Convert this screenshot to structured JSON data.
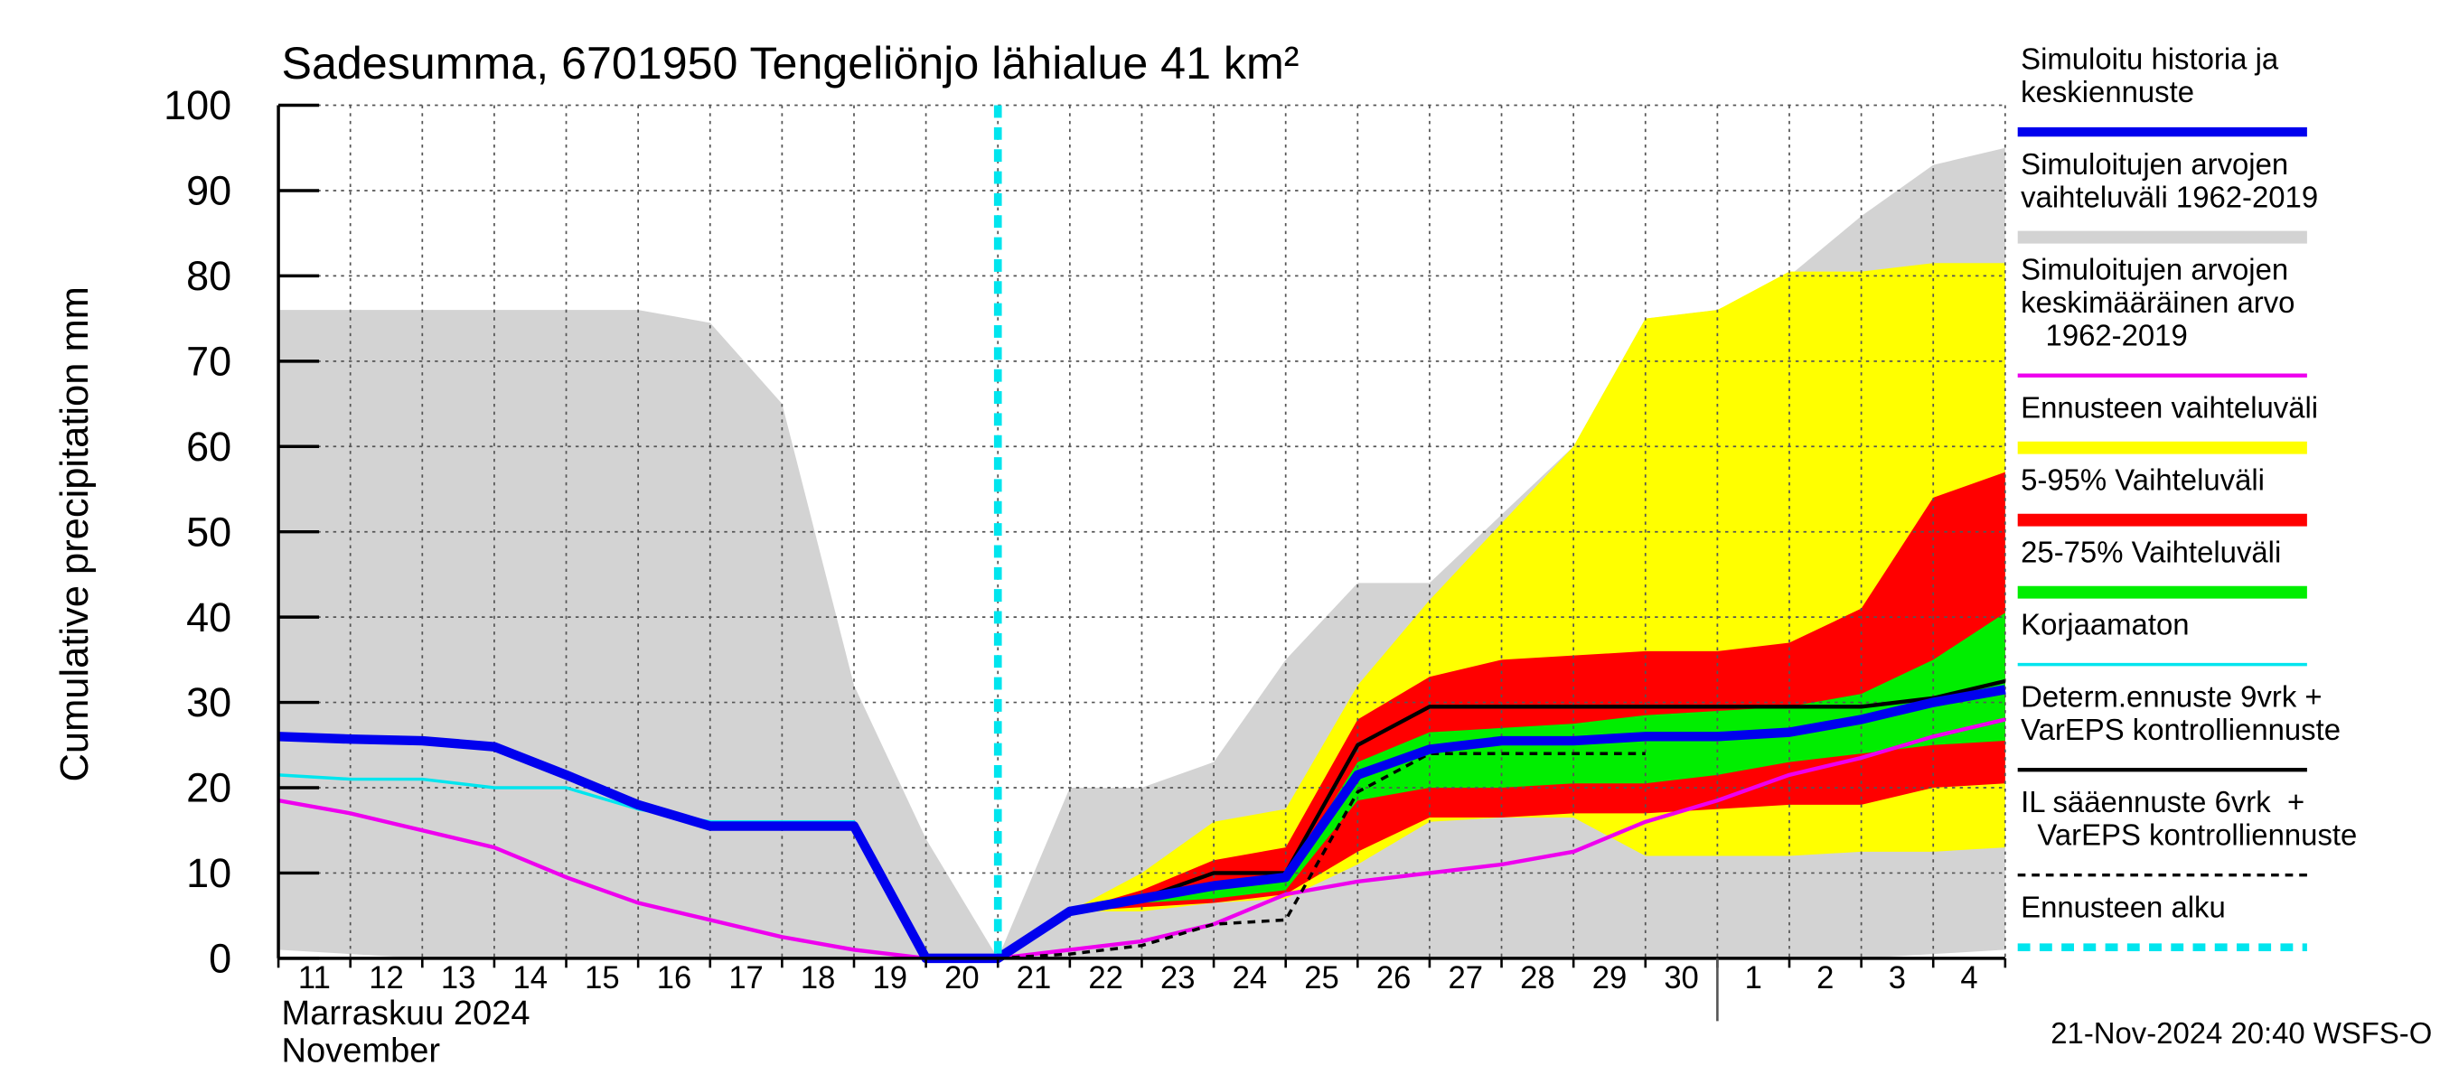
{
  "chart_data": {
    "type": "band-line",
    "title": "Sadesumma, 6701950 Tengeliönjo lähialue 41 km²",
    "y_label": "Cumulative precipitation   mm",
    "month_label": "Marraskuu 2024",
    "month_label_en": "November",
    "footer": "21-Nov-2024 20:40 WSFS-O",
    "categories": [
      "11",
      "12",
      "13",
      "14",
      "15",
      "16",
      "17",
      "18",
      "19",
      "20",
      "21",
      "22",
      "23",
      "24",
      "25",
      "26",
      "27",
      "28",
      "29",
      "30",
      "1",
      "2",
      "3",
      "4",
      null
    ],
    "month_break_index": 20,
    "forecast_start_index": 10,
    "ylim": [
      0,
      100
    ],
    "yticks": [
      0,
      10,
      20,
      30,
      40,
      50,
      60,
      70,
      80,
      90,
      100
    ],
    "grid": true,
    "series": [
      {
        "name": [
          "Simuloitujen arvojen",
          "vaihteluväli 1962-2019"
        ],
        "kind": "band",
        "color": "#d3d3d3",
        "upper": [
          76,
          76,
          76,
          76,
          76,
          76,
          74.5,
          65,
          32,
          14,
          0,
          20,
          20,
          23,
          35,
          44,
          44,
          52,
          60,
          75,
          76,
          80,
          87,
          93,
          95
        ],
        "lower": [
          1,
          0.5,
          0,
          0,
          0,
          0,
          0,
          0,
          0,
          0,
          0,
          0,
          0,
          0,
          0,
          0,
          0,
          0,
          0,
          0,
          0,
          0,
          0,
          0.5,
          1
        ]
      },
      {
        "name": [
          "Ennusteen vaihteluväli"
        ],
        "kind": "band",
        "color": "#ffff00",
        "upper": [
          null,
          null,
          null,
          null,
          null,
          null,
          null,
          null,
          null,
          null,
          0,
          5.5,
          10,
          16,
          17.5,
          32,
          42,
          51,
          60,
          75,
          76,
          80.5,
          80.5,
          81.5,
          81.5
        ],
        "lower": [
          null,
          null,
          null,
          null,
          null,
          null,
          null,
          null,
          null,
          null,
          0,
          5.5,
          5.5,
          6.5,
          7,
          11,
          16,
          16.5,
          16.5,
          12,
          12,
          12,
          12.5,
          12.5,
          13
        ]
      },
      {
        "name": [
          "5-95% Vaihteluväli"
        ],
        "kind": "band",
        "color": "#ff0000",
        "upper": [
          null,
          null,
          null,
          null,
          null,
          null,
          null,
          null,
          null,
          null,
          0,
          5.5,
          8,
          11.5,
          13,
          28,
          33,
          35,
          35.5,
          36,
          36,
          37,
          41,
          54,
          57
        ],
        "lower": [
          null,
          null,
          null,
          null,
          null,
          null,
          null,
          null,
          null,
          null,
          0,
          5.5,
          6,
          6.5,
          7.5,
          12.5,
          16.5,
          16.5,
          17,
          17,
          17.5,
          18,
          18,
          20,
          20.5
        ]
      },
      {
        "name": [
          "25-75% Vaihteluväli"
        ],
        "kind": "band",
        "color": "#00ee00",
        "upper": [
          null,
          null,
          null,
          null,
          null,
          null,
          null,
          null,
          null,
          null,
          0,
          5.5,
          7,
          9,
          9.5,
          23,
          26.5,
          27,
          27.5,
          28.5,
          29,
          29.5,
          31,
          35,
          40.5
        ],
        "lower": [
          null,
          null,
          null,
          null,
          null,
          null,
          null,
          null,
          null,
          null,
          0,
          5.5,
          6.5,
          7,
          8,
          18.5,
          20,
          20,
          20.5,
          20.5,
          21.5,
          23,
          24,
          25,
          25.5
        ]
      },
      {
        "name": [
          "Simuloitujen arvojen",
          "keskimääräinen arvo",
          "   1962-2019"
        ],
        "kind": "line",
        "color": "#ee00ee",
        "width": 2.5,
        "values": [
          18.5,
          17,
          15,
          13,
          9.5,
          6.5,
          4.5,
          2.5,
          1,
          0,
          0,
          1,
          2,
          4,
          7.5,
          9,
          10,
          11,
          12.5,
          16,
          18.5,
          21.5,
          23.5,
          26,
          28
        ]
      },
      {
        "name": [
          "Korjaamaton"
        ],
        "kind": "line",
        "color": "#00e5ee",
        "width": 2,
        "values": [
          21.5,
          21,
          21,
          20,
          20,
          17.5,
          16,
          16,
          16,
          0,
          0,
          null,
          null,
          null,
          null,
          null,
          null,
          null,
          null,
          null,
          null,
          null,
          null,
          null,
          null
        ]
      },
      {
        "name": [
          "IL sääennuste 6vrk  +",
          "  VarEPS kontrolliennuste"
        ],
        "kind": "line",
        "color": "#000000",
        "width": 2,
        "dash": true,
        "values": [
          null,
          null,
          null,
          null,
          null,
          null,
          null,
          null,
          null,
          null,
          0,
          0.5,
          1.5,
          4,
          4.5,
          19.5,
          24,
          24,
          24,
          24,
          null,
          null,
          null,
          null,
          null
        ]
      },
      {
        "name": [
          "Determ.ennuste 9vrk +",
          "VarEPS kontrolliennuste"
        ],
        "kind": "line",
        "color": "#000000",
        "width": 2.5,
        "values": [
          null,
          null,
          null,
          null,
          null,
          null,
          null,
          null,
          null,
          null,
          0,
          5.5,
          7,
          10,
          10,
          25,
          29.5,
          29.5,
          29.5,
          29.5,
          29.5,
          29.5,
          29.5,
          30.5,
          32.5
        ]
      },
      {
        "name": [
          "Simuloitu historia ja",
          "keskiennuste"
        ],
        "kind": "line",
        "color": "#0000ee",
        "width": 6,
        "values": [
          26,
          25.7,
          25.5,
          24.8,
          21.5,
          18,
          15.5,
          15.5,
          15.5,
          0,
          0,
          5.5,
          7,
          8.5,
          9.5,
          21.5,
          24.5,
          25.5,
          25.5,
          26,
          26,
          26.5,
          28,
          30,
          31.5
        ]
      }
    ],
    "forecast_start_name": [
      "Ennusteen alku"
    ],
    "forecast_start_color": "#00e5ee",
    "legend_order": [
      8,
      0,
      4,
      1,
      2,
      3,
      5,
      7,
      6
    ]
  }
}
